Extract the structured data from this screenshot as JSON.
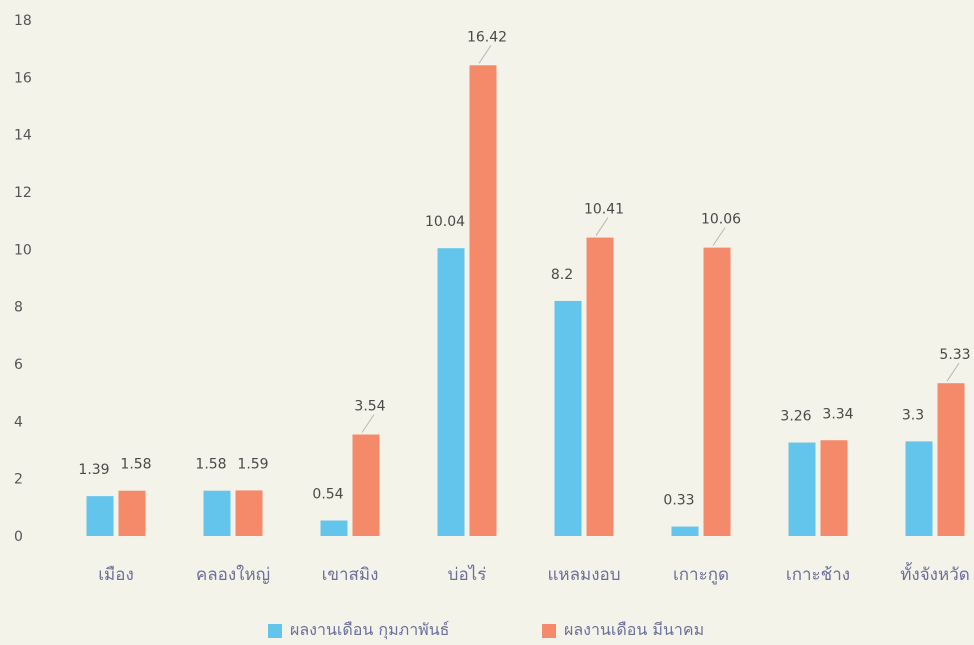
{
  "chart_data": {
    "type": "bar",
    "categories": [
      "เมือง",
      "คลองใหญ่",
      "เขาสมิง",
      "บ่อไร่",
      "แหลมงอบ",
      "เกาะกูด",
      "เกาะช้าง",
      "ทั้งจังหวัด"
    ],
    "series": [
      {
        "name": "ผลงานเดือน กุมภาพันธ์",
        "color": "#63c4ec",
        "values": [
          1.39,
          1.58,
          0.54,
          10.04,
          8.2,
          0.33,
          3.26,
          3.3
        ],
        "labels": [
          "1.39",
          "1.58",
          "0.54",
          "10.04",
          "8.2",
          "0.33",
          "3.26",
          "3.3"
        ]
      },
      {
        "name": "ผลงานเดือน มีนาคม",
        "color": "#f58a6a",
        "values": [
          1.58,
          1.59,
          3.54,
          16.42,
          10.41,
          10.06,
          3.34,
          5.33
        ],
        "labels": [
          "1.58",
          "1.59",
          "3.54",
          "16.42",
          "10.41",
          "10.06",
          "3.34",
          "5.33"
        ]
      }
    ],
    "yticks": [
      "0",
      "2",
      "4",
      "6",
      "8",
      "10",
      "12",
      "14",
      "16",
      "18"
    ],
    "ylim": [
      0,
      18
    ],
    "grid": false,
    "legend_position": "bottom"
  }
}
